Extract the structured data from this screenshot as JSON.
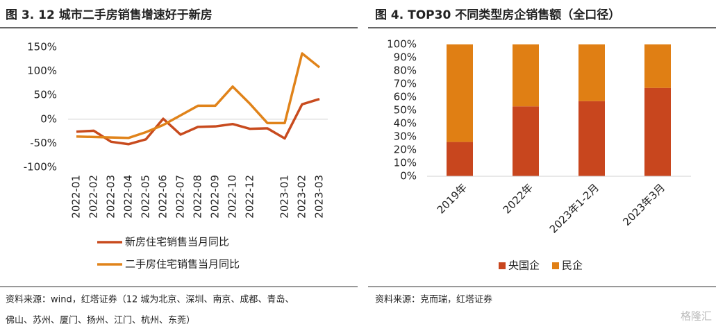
{
  "chart_data": [
    {
      "type": "line",
      "title": "图 3. 12 城市二手房销售增速好于新房",
      "categories": [
        "2022-01",
        "2022-02",
        "2022-03",
        "2022-04",
        "2022-05",
        "2022-06",
        "2022-07",
        "2022-08",
        "2022-09",
        "2022-10",
        "2022-12",
        null,
        "2023-01",
        "2023-02",
        "2023-03"
      ],
      "series": [
        {
          "name": "新房住宅销售当月同比",
          "color": "#c84b1e",
          "values": [
            -26,
            -24,
            -47,
            -52,
            -42,
            1,
            -32,
            -16,
            -15,
            -10,
            -20,
            -19,
            -40,
            31,
            42
          ]
        },
        {
          "name": "二手房住宅销售当月同比",
          "color": "#e0831a",
          "values": [
            -36,
            -37,
            -38,
            -39,
            -27,
            -12,
            8,
            28,
            28,
            68,
            32,
            -8,
            -8,
            137,
            108
          ]
        }
      ],
      "ylim": [
        -100,
        150
      ],
      "yticks": [
        {
          "value": -100,
          "label": "-100%"
        },
        {
          "value": -50,
          "label": "-50%"
        },
        {
          "value": 0,
          "label": "0%"
        },
        {
          "value": 50,
          "label": "50%"
        },
        {
          "value": 100,
          "label": "100%"
        },
        {
          "value": 150,
          "label": "150%"
        }
      ],
      "source": "资料来源：wind，红塔证券（12 城为北京、深圳、南京、成都、青岛、",
      "source_2": "佛山、苏州、厦门、扬州、江门、杭州、东莞）"
    },
    {
      "type": "stacked_bar",
      "title": "图 4. TOP30 不同类型房企销售额（全口径）",
      "categories": [
        "2019年",
        "2022年",
        "2023年1-2月",
        "2023年3月"
      ],
      "series": [
        {
          "name": "央国企",
          "color": "#c8461e",
          "values": [
            26,
            53,
            57,
            67
          ]
        },
        {
          "name": "民企",
          "color": "#e07f14",
          "values": [
            74,
            47,
            43,
            33
          ]
        }
      ],
      "ylim": [
        0,
        100
      ],
      "yticks": [
        {
          "value": 0,
          "label": "0%"
        },
        {
          "value": 10,
          "label": "10%"
        },
        {
          "value": 20,
          "label": "20%"
        },
        {
          "value": 30,
          "label": "30%"
        },
        {
          "value": 40,
          "label": "40%"
        },
        {
          "value": 50,
          "label": "50%"
        },
        {
          "value": 60,
          "label": "60%"
        },
        {
          "value": 70,
          "label": "70%"
        },
        {
          "value": 80,
          "label": "80%"
        },
        {
          "value": 90,
          "label": "90%"
        },
        {
          "value": 100,
          "label": "100%"
        }
      ],
      "source": "资料来源：克而瑞，红塔证券",
      "watermark": "格隆汇"
    }
  ]
}
